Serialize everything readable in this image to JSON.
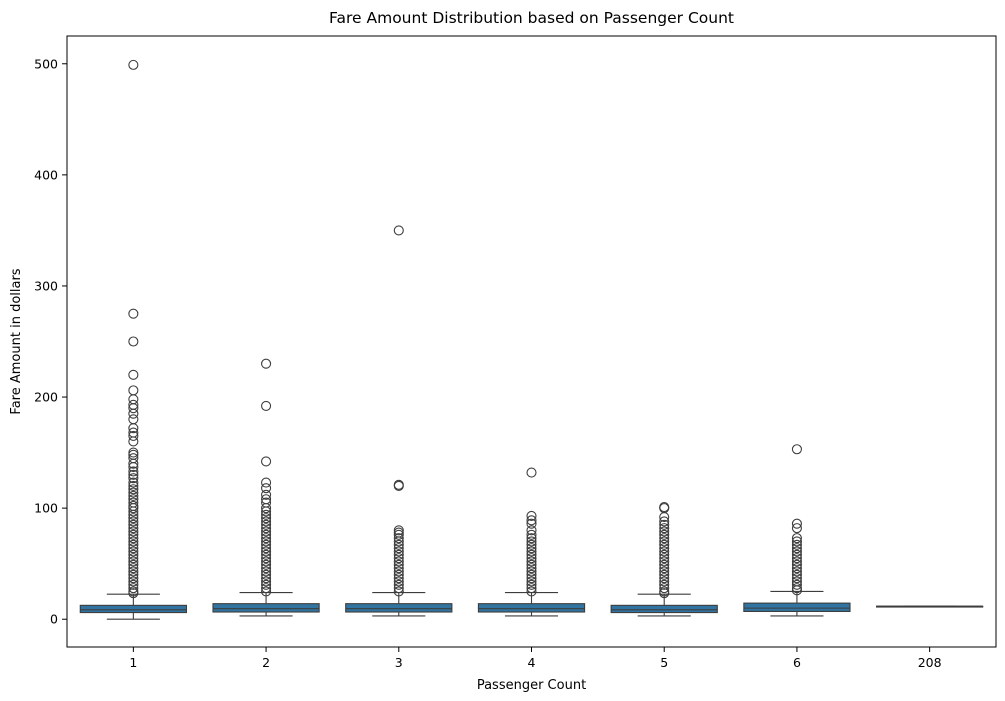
{
  "chart_data": {
    "type": "box",
    "title": "Fare Amount Distribution based on Passenger Count",
    "xlabel": "Passenger Count",
    "ylabel": "Fare Amount in dollars",
    "ylim": [
      -25,
      525
    ],
    "yticks": [
      0,
      100,
      200,
      300,
      400,
      500
    ],
    "grid": false,
    "legend": "none",
    "box_color": "#3274a1",
    "edge_color": "#3d3d3d",
    "categories": [
      "1",
      "2",
      "3",
      "4",
      "5",
      "6",
      "208"
    ],
    "boxes": [
      {
        "category": "1",
        "whisker_low": 0,
        "q1": 6,
        "median": 8.5,
        "q3": 12.5,
        "whisker_high": 22.5,
        "outliers": [
          499,
          275,
          250,
          220,
          206,
          198,
          193,
          190,
          185,
          180,
          172,
          168,
          165,
          160,
          150,
          148,
          145,
          140,
          137,
          133,
          130,
          127,
          123,
          120,
          117,
          114,
          111,
          108,
          105,
          102,
          100,
          97,
          94,
          91,
          88,
          85,
          82,
          79,
          76,
          73,
          70,
          67,
          64,
          61,
          58,
          55,
          52,
          49,
          46,
          43,
          40,
          37,
          34,
          31,
          28,
          25,
          23.5
        ]
      },
      {
        "category": "2",
        "whisker_low": 3,
        "q1": 6.5,
        "median": 9.5,
        "q3": 14,
        "whisker_high": 24,
        "outliers": [
          230,
          192,
          142,
          123,
          118,
          112,
          108,
          105,
          100,
          97,
          94,
          91,
          88,
          85,
          82,
          79,
          76,
          73,
          70,
          67,
          64,
          61,
          58,
          55,
          52,
          49,
          46,
          43,
          40,
          37,
          34,
          31,
          28,
          25
        ]
      },
      {
        "category": "3",
        "whisker_low": 3,
        "q1": 6.5,
        "median": 9.5,
        "q3": 14,
        "whisker_high": 24,
        "outliers": [
          350,
          121,
          120,
          80,
          78,
          76,
          73,
          70,
          67,
          64,
          61,
          58,
          55,
          52,
          49,
          46,
          43,
          40,
          37,
          34,
          31,
          28,
          25
        ]
      },
      {
        "category": "4",
        "whisker_low": 3,
        "q1": 6.5,
        "median": 9.5,
        "q3": 14,
        "whisker_high": 24,
        "outliers": [
          132,
          93,
          89,
          86,
          80,
          76,
          73,
          70,
          67,
          64,
          61,
          58,
          55,
          52,
          49,
          46,
          43,
          40,
          37,
          34,
          31,
          28,
          25
        ]
      },
      {
        "category": "5",
        "whisker_low": 3,
        "q1": 6,
        "median": 8.5,
        "q3": 12.5,
        "whisker_high": 22.5,
        "outliers": [
          101,
          100,
          92,
          88,
          85,
          82,
          79,
          76,
          73,
          70,
          67,
          64,
          61,
          58,
          55,
          52,
          49,
          46,
          43,
          40,
          37,
          34,
          31,
          28,
          25,
          23.5
        ]
      },
      {
        "category": "6",
        "whisker_low": 3,
        "q1": 7,
        "median": 10,
        "q3": 14.5,
        "whisker_high": 25,
        "outliers": [
          153,
          86,
          82,
          73,
          70,
          67,
          64,
          61,
          58,
          55,
          52,
          49,
          46,
          43,
          40,
          37,
          34,
          31,
          28,
          26
        ]
      },
      {
        "category": "208",
        "whisker_low": 11.7,
        "q1": 11.7,
        "median": 11.7,
        "q3": 11.7,
        "whisker_high": 11.7,
        "outliers": []
      }
    ]
  }
}
